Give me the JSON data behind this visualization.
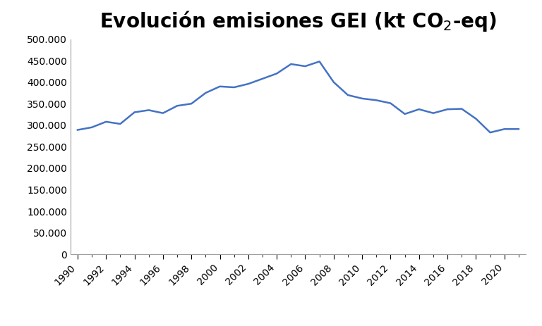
{
  "line_color": "#4472C4",
  "line_width": 1.8,
  "background_color": "#ffffff",
  "years": [
    1990,
    1991,
    1992,
    1993,
    1994,
    1995,
    1996,
    1997,
    1998,
    1999,
    2000,
    2001,
    2002,
    2003,
    2004,
    2005,
    2006,
    2007,
    2008,
    2009,
    2010,
    2011,
    2012,
    2013,
    2014,
    2015,
    2016,
    2017,
    2018,
    2019,
    2020,
    2021
  ],
  "values": [
    289000,
    295000,
    308000,
    303000,
    330000,
    335000,
    328000,
    345000,
    350000,
    375000,
    390000,
    388000,
    396000,
    408000,
    420000,
    442000,
    437000,
    448000,
    400000,
    370000,
    362000,
    358000,
    351000,
    326000,
    337000,
    328000,
    337000,
    338000,
    315000,
    283000,
    291000,
    291000
  ],
  "ylim": [
    0,
    500000
  ],
  "yticks": [
    0,
    50000,
    100000,
    150000,
    200000,
    250000,
    300000,
    350000,
    400000,
    450000,
    500000
  ],
  "xtick_labeled": [
    1990,
    1992,
    1994,
    1996,
    1998,
    2000,
    2002,
    2004,
    2006,
    2008,
    2010,
    2012,
    2014,
    2016,
    2018,
    2020
  ],
  "xlim_left": 1989.5,
  "xlim_right": 2021.5,
  "title": "Evolución emisiones GEI (kt CO$_2$-eq)",
  "title_fontsize": 20,
  "tick_fontsize": 10,
  "spine_color": "#a0a0a0"
}
